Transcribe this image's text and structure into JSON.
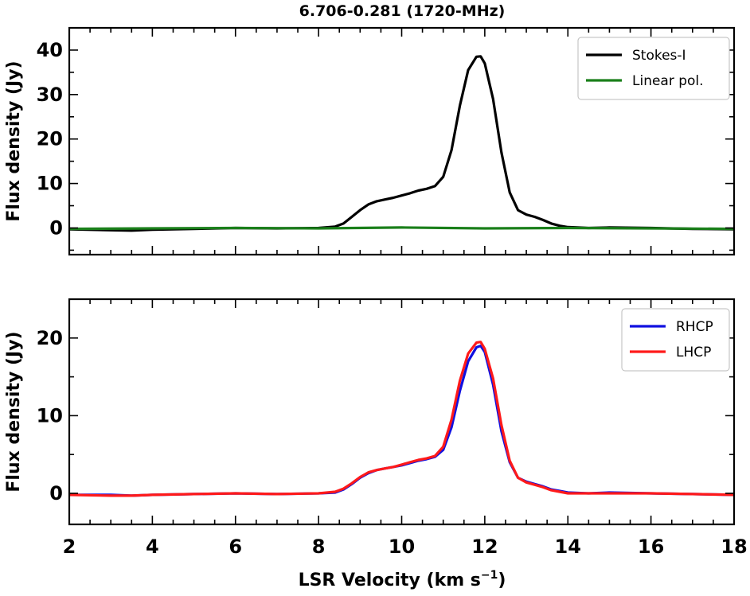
{
  "figure": {
    "title": "6.706-0.281 (1720-MHz)",
    "xlabel_main": "LSR Velocity (km s",
    "xlabel_sup": "−1",
    "xlabel_close": ")"
  },
  "chart_data": [
    {
      "type": "line",
      "title": "6.706-0.281 (1720-MHz)",
      "xlabel": "",
      "ylabel": "Flux density (Jy)",
      "xlim": [
        2,
        18
      ],
      "ylim": [
        -6,
        45
      ],
      "xticks": [
        2,
        4,
        6,
        8,
        10,
        12,
        14,
        16,
        18
      ],
      "yticks": [
        0,
        10,
        20,
        30,
        40
      ],
      "grid": false,
      "legend": "top-right",
      "series": [
        {
          "name": "Stokes-I",
          "color": "#000000",
          "x": [
            2,
            3,
            3.5,
            4,
            5,
            6,
            7,
            8,
            8.4,
            8.6,
            8.8,
            9.0,
            9.2,
            9.4,
            9.6,
            9.8,
            10.0,
            10.2,
            10.4,
            10.6,
            10.8,
            11.0,
            11.2,
            11.4,
            11.6,
            11.8,
            11.9,
            12.0,
            12.2,
            12.4,
            12.6,
            12.8,
            13.0,
            13.2,
            13.4,
            13.6,
            13.8,
            14.0,
            14.5,
            15,
            16,
            17,
            18
          ],
          "y": [
            -0.3,
            -0.5,
            -0.6,
            -0.4,
            -0.2,
            0.0,
            -0.1,
            0.0,
            0.3,
            1.0,
            2.5,
            4.0,
            5.3,
            6.0,
            6.4,
            6.8,
            7.3,
            7.8,
            8.4,
            8.8,
            9.4,
            11.5,
            17.5,
            27.5,
            35.5,
            38.5,
            38.6,
            37.0,
            29.0,
            17.0,
            8.0,
            4.0,
            3.0,
            2.5,
            1.8,
            1.0,
            0.5,
            0.2,
            0.0,
            0.1,
            0.0,
            -0.2,
            -0.3
          ]
        },
        {
          "name": "Linear pol.",
          "color": "#1a7f1a",
          "x": [
            2,
            4,
            6,
            8,
            10,
            12,
            14,
            16,
            18
          ],
          "y": [
            -0.2,
            -0.1,
            0.0,
            -0.1,
            0.1,
            -0.1,
            0.0,
            -0.1,
            -0.2
          ]
        }
      ]
    },
    {
      "type": "line",
      "xlabel": "LSR Velocity (km s−1)",
      "ylabel": "Flux density (Jy)",
      "xlim": [
        2,
        18
      ],
      "ylim": [
        -4,
        25
      ],
      "xticks": [
        2,
        4,
        6,
        8,
        10,
        12,
        14,
        16,
        18
      ],
      "yticks": [
        0,
        10,
        20
      ],
      "grid": false,
      "legend": "top-right",
      "series": [
        {
          "name": "RHCP",
          "color": "#1010e0",
          "x": [
            2,
            3,
            3.5,
            4,
            5,
            6,
            7,
            8,
            8.4,
            8.6,
            8.8,
            9.0,
            9.2,
            9.4,
            9.6,
            9.8,
            10.0,
            10.2,
            10.4,
            10.6,
            10.8,
            11.0,
            11.2,
            11.4,
            11.6,
            11.8,
            11.9,
            12.0,
            12.2,
            12.4,
            12.6,
            12.8,
            13.0,
            13.2,
            13.4,
            13.6,
            13.8,
            14.0,
            14.5,
            15,
            16,
            17,
            18
          ],
          "y": [
            -0.2,
            -0.2,
            -0.3,
            -0.2,
            -0.1,
            0.0,
            -0.1,
            0.0,
            0.1,
            0.5,
            1.2,
            2.0,
            2.6,
            3.0,
            3.2,
            3.4,
            3.6,
            3.9,
            4.2,
            4.4,
            4.7,
            5.6,
            8.5,
            13.2,
            17.0,
            18.8,
            19.0,
            18.2,
            14.0,
            8.0,
            4.0,
            2.0,
            1.5,
            1.2,
            0.9,
            0.5,
            0.3,
            0.1,
            0.0,
            0.1,
            0.0,
            -0.1,
            -0.2
          ]
        },
        {
          "name": "LHCP",
          "color": "#ff1a1a",
          "x": [
            2,
            3,
            3.5,
            4,
            5,
            6,
            7,
            8,
            8.4,
            8.6,
            8.8,
            9.0,
            9.2,
            9.4,
            9.6,
            9.8,
            10.0,
            10.2,
            10.4,
            10.6,
            10.8,
            11.0,
            11.2,
            11.4,
            11.6,
            11.8,
            11.9,
            12.0,
            12.2,
            12.4,
            12.6,
            12.8,
            13.0,
            13.2,
            13.4,
            13.6,
            13.8,
            14.0,
            14.5,
            15,
            16,
            17,
            18
          ],
          "y": [
            -0.2,
            -0.3,
            -0.3,
            -0.2,
            -0.1,
            0.0,
            -0.1,
            0.0,
            0.2,
            0.6,
            1.3,
            2.1,
            2.7,
            3.0,
            3.2,
            3.4,
            3.7,
            4.0,
            4.3,
            4.5,
            4.8,
            6.0,
            9.5,
            14.5,
            18.0,
            19.4,
            19.5,
            18.6,
            14.8,
            8.8,
            4.2,
            2.0,
            1.4,
            1.1,
            0.8,
            0.4,
            0.2,
            0.0,
            0.0,
            0.0,
            0.0,
            -0.1,
            -0.2
          ]
        }
      ]
    }
  ]
}
